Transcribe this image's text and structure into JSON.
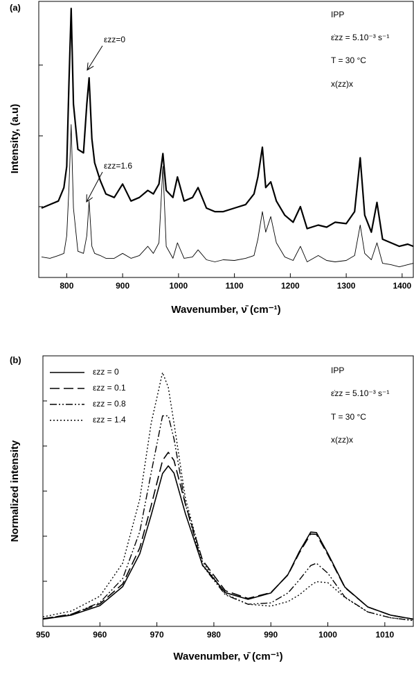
{
  "chart_data": [
    {
      "type": "line",
      "panel_label": "(a)",
      "x_label": "Wavenumber, ν̄ (cm⁻¹)",
      "y_label": "Intensity, (a.u)",
      "annotations": [
        "IPP",
        "ε̇zz = 5.10⁻³ s⁻¹",
        "T = 30 °C",
        "x(zz)x",
        "εzz=0",
        "εzz=1.6"
      ],
      "xlim": [
        750,
        1420
      ],
      "xticks": [
        800,
        900,
        1000,
        1100,
        1200,
        1300,
        1400
      ],
      "ylim": [
        0,
        3.9
      ],
      "yticks": [
        1,
        2,
        3
      ],
      "x": [
        755,
        770,
        785,
        795,
        800,
        804,
        808,
        812,
        820,
        830,
        836,
        840,
        845,
        850,
        860,
        870,
        885,
        900,
        915,
        930,
        945,
        955,
        965,
        972,
        978,
        990,
        998,
        1010,
        1025,
        1035,
        1050,
        1065,
        1080,
        1100,
        1120,
        1135,
        1142,
        1150,
        1156,
        1165,
        1175,
        1190,
        1205,
        1218,
        1230,
        1250,
        1265,
        1280,
        1300,
        1315,
        1325,
        1333,
        1345,
        1355,
        1365,
        1380,
        1395,
        1410,
        1420
      ],
      "series": [
        {
          "color": "#000000",
          "width": 2.2,
          "values": [
            0.98,
            1.03,
            1.08,
            1.27,
            1.57,
            2.75,
            3.8,
            2.45,
            1.81,
            1.76,
            2.45,
            2.82,
            1.96,
            1.62,
            1.37,
            1.18,
            1.13,
            1.32,
            1.08,
            1.13,
            1.23,
            1.18,
            1.32,
            1.75,
            1.23,
            1.13,
            1.42,
            1.08,
            1.13,
            1.27,
            0.98,
            0.93,
            0.93,
            0.98,
            1.03,
            1.18,
            1.42,
            1.84,
            1.27,
            1.35,
            1.08,
            0.88,
            0.78,
            1.0,
            0.69,
            0.74,
            0.71,
            0.78,
            0.76,
            0.93,
            1.69,
            0.88,
            0.64,
            1.06,
            0.54,
            0.49,
            0.44,
            0.47,
            0.44
          ]
        },
        {
          "color": "#000000",
          "width": 0.9,
          "values": [
            0.29,
            0.27,
            0.31,
            0.34,
            0.59,
            1.27,
            2.16,
            0.98,
            0.37,
            0.34,
            0.59,
            1.08,
            0.44,
            0.34,
            0.31,
            0.27,
            0.27,
            0.34,
            0.27,
            0.31,
            0.44,
            0.34,
            0.49,
            1.57,
            0.44,
            0.27,
            0.49,
            0.27,
            0.29,
            0.39,
            0.25,
            0.22,
            0.25,
            0.24,
            0.27,
            0.31,
            0.54,
            0.93,
            0.64,
            0.86,
            0.49,
            0.29,
            0.24,
            0.44,
            0.22,
            0.31,
            0.24,
            0.22,
            0.24,
            0.31,
            0.74,
            0.34,
            0.25,
            0.49,
            0.2,
            0.18,
            0.15,
            0.18,
            0.2
          ]
        }
      ]
    },
    {
      "type": "line",
      "panel_label": "(b)",
      "x_label": "Wavenumber, ν̄ (cm⁻¹)",
      "y_label": "Normalized intensity",
      "annotations": [
        "IPP",
        "ε̇zz = 5.10⁻³ s⁻¹",
        "T = 30 °C",
        "x(zz)x"
      ],
      "legend": "upper left",
      "xlim": [
        950,
        1015
      ],
      "xticks": [
        950,
        960,
        970,
        980,
        990,
        1000,
        1010
      ],
      "ylim": [
        0,
        6
      ],
      "yticks": [
        1,
        2,
        3,
        4,
        5
      ],
      "x": [
        950,
        955,
        960,
        964,
        967,
        969,
        971,
        972,
        973,
        975,
        978,
        982,
        986,
        990,
        993,
        995,
        997,
        998,
        1000,
        1003,
        1007,
        1011,
        1015
      ],
      "series": [
        {
          "name": "εzz = 0",
          "color": "#000000",
          "width": 1.6,
          "dash": "none",
          "values": [
            0.16,
            0.25,
            0.46,
            0.88,
            1.61,
            2.47,
            3.39,
            3.56,
            3.4,
            2.5,
            1.36,
            0.75,
            0.6,
            0.74,
            1.15,
            1.66,
            2.09,
            2.08,
            1.62,
            0.87,
            0.43,
            0.25,
            0.16
          ]
        },
        {
          "name": "εzz = 0.1",
          "color": "#000000",
          "width": 1.6,
          "dash": "14 6",
          "values": [
            0.17,
            0.27,
            0.5,
            0.94,
            1.74,
            2.68,
            3.68,
            3.86,
            3.68,
            2.71,
            1.47,
            0.79,
            0.62,
            0.75,
            1.14,
            1.63,
            2.05,
            2.04,
            1.59,
            0.86,
            0.43,
            0.25,
            0.16
          ]
        },
        {
          "name": "εzz = 0.8",
          "color": "#000000",
          "width": 1.4,
          "dash": "10 3 2 3 2 3",
          "values": [
            0.17,
            0.27,
            0.53,
            1.06,
            2.1,
            3.41,
            4.67,
            4.67,
            4.16,
            2.71,
            1.35,
            0.7,
            0.49,
            0.52,
            0.74,
            1.03,
            1.35,
            1.4,
            1.18,
            0.65,
            0.32,
            0.19,
            0.13
          ]
        },
        {
          "name": "εzz = 1.4",
          "color": "#000000",
          "width": 1.4,
          "dash": "2 3",
          "values": [
            0.21,
            0.34,
            0.67,
            1.4,
            2.82,
            4.51,
            5.63,
            5.3,
            4.51,
            2.84,
            1.43,
            0.72,
            0.49,
            0.45,
            0.55,
            0.7,
            0.91,
            0.99,
            0.97,
            0.64,
            0.32,
            0.19,
            0.13
          ]
        }
      ]
    }
  ]
}
